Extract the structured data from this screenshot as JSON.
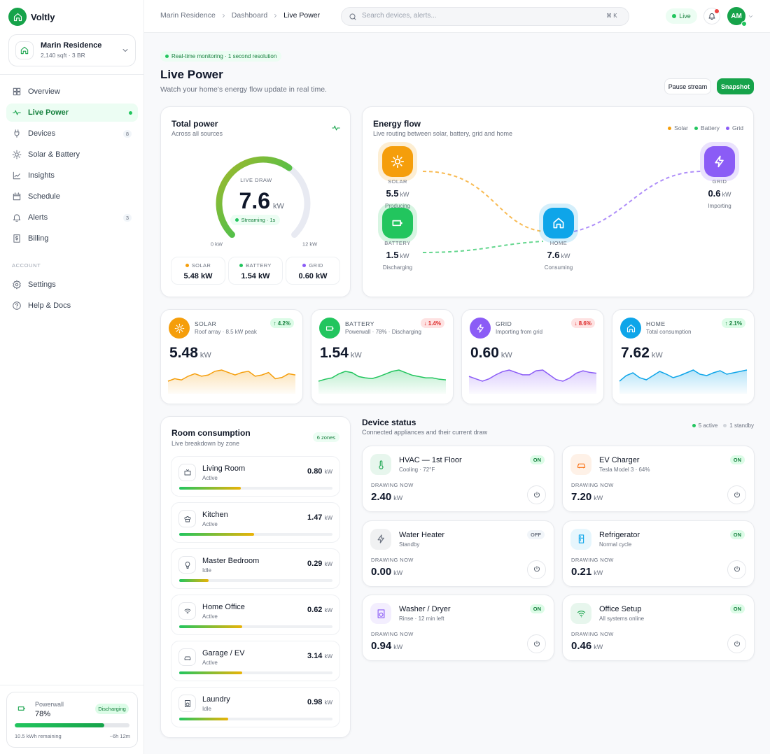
{
  "brand": "Voltly",
  "home": {
    "name": "Marin Residence",
    "details": "2,140 sqft · 3 BR"
  },
  "nav": [
    {
      "label": "Overview"
    },
    {
      "label": "Live Power",
      "active": true
    },
    {
      "label": "Devices",
      "badge": "8"
    },
    {
      "label": "Solar & Battery"
    },
    {
      "label": "Insights"
    },
    {
      "label": "Schedule"
    },
    {
      "label": "Alerts",
      "badge": "3"
    },
    {
      "label": "Billing"
    }
  ],
  "account_heading": "ACCOUNT",
  "account_nav": [
    {
      "label": "Settings"
    },
    {
      "label": "Help & Docs"
    }
  ],
  "powerwall": {
    "name": "Powerwall",
    "level_label": "78%",
    "level": 78,
    "status": "Discharging",
    "remaining": "10.5 kWh remaining",
    "time_left": "~6h 12m"
  },
  "breadcrumbs": [
    "Marin Residence",
    "Dashboard",
    "Live Power"
  ],
  "search": {
    "placeholder": "Search devices, alerts...",
    "shortcut": "⌘ K"
  },
  "live_badge": "Live",
  "avatar": "AM",
  "header": {
    "badge": "Real-time monitoring · 1 second resolution",
    "title": "Live Power",
    "subtitle": "Watch your home's energy flow update in real time.",
    "buttons": [
      "Pause stream",
      "Snapshot"
    ]
  },
  "total_power": {
    "title": "Total power",
    "subtitle": "Across all sources",
    "gauge_label": "LIVE DRAW",
    "value": 7.6,
    "unit": "kW",
    "status": "Streaming · 1s",
    "scale": [
      {
        "value": 0,
        "label": "0 kW"
      },
      {
        "value": 12,
        "label": "12 kW"
      }
    ],
    "sources": [
      {
        "name": "SOLAR",
        "value": "5.48 kW",
        "color": "#f59e0b"
      },
      {
        "name": "BATTERY",
        "value": "1.54 kW",
        "color": "#22c55e"
      },
      {
        "name": "GRID",
        "value": "0.60 kW",
        "color": "#8b5cf6"
      }
    ]
  },
  "energy_flow": {
    "title": "Energy flow",
    "subtitle": "Live routing between solar, battery, grid and home",
    "legend": [
      {
        "name": "Solar",
        "color": "#f59e0b"
      },
      {
        "name": "Battery",
        "color": "#22c55e"
      },
      {
        "name": "Grid",
        "color": "#8b5cf6"
      }
    ],
    "nodes": [
      {
        "name": "SOLAR",
        "value": "5.5",
        "unit": "kW",
        "status": "Producing",
        "color": "#f59e0b"
      },
      {
        "name": "GRID",
        "value": "0.6",
        "unit": "kW",
        "status": "Importing",
        "color": "#8b5cf6"
      },
      {
        "name": "HOME",
        "value": "7.6",
        "unit": "kW",
        "status": "Consuming",
        "color": "#0ea5e9"
      },
      {
        "name": "BATTERY",
        "value": "1.5",
        "unit": "kW",
        "status": "Discharging",
        "color": "#22c55e"
      }
    ]
  },
  "stats": [
    {
      "name": "SOLAR",
      "subtitle": "Roof array · 8.5 kW peak",
      "change": "↑ 4.2%",
      "trend": "up",
      "value": "5.48",
      "unit": "kW",
      "color": "#f59e0b",
      "spark": [
        5.42,
        5.44,
        5.43,
        5.46,
        5.48,
        5.46,
        5.47,
        5.5,
        5.51,
        5.49,
        5.47,
        5.49,
        5.5,
        5.46,
        5.47,
        5.49,
        5.44,
        5.45,
        5.48,
        5.47
      ]
    },
    {
      "name": "BATTERY",
      "subtitle": "Powerwall · 78% · Discharging",
      "change": "↓ 1.4%",
      "trend": "down",
      "value": "1.54",
      "unit": "kW",
      "color": "#22c55e",
      "spark": [
        1.45,
        1.48,
        1.5,
        1.56,
        1.6,
        1.58,
        1.52,
        1.5,
        1.49,
        1.52,
        1.56,
        1.6,
        1.62,
        1.58,
        1.54,
        1.52,
        1.5,
        1.5,
        1.48,
        1.47
      ]
    },
    {
      "name": "GRID",
      "subtitle": "Importing from grid",
      "change": "↓ 8.6%",
      "trend": "down",
      "value": "0.60",
      "unit": "kW",
      "color": "#8b5cf6",
      "spark": [
        0.58,
        0.55,
        0.52,
        0.55,
        0.6,
        0.64,
        0.66,
        0.63,
        0.6,
        0.6,
        0.65,
        0.66,
        0.6,
        0.54,
        0.52,
        0.56,
        0.62,
        0.65,
        0.63,
        0.62
      ]
    },
    {
      "name": "HOME",
      "subtitle": "Total consumption",
      "change": "↑ 2.1%",
      "trend": "up",
      "value": "7.62",
      "unit": "kW",
      "color": "#0ea5e9",
      "spark": [
        7.5,
        7.58,
        7.62,
        7.55,
        7.52,
        7.58,
        7.64,
        7.6,
        7.55,
        7.58,
        7.62,
        7.66,
        7.6,
        7.58,
        7.62,
        7.65,
        7.6,
        7.62,
        7.64,
        7.66
      ]
    }
  ],
  "rooms": {
    "title": "Room consumption",
    "subtitle": "Live breakdown by zone",
    "badge": "6 zones",
    "items": [
      {
        "name": "Living Room",
        "status": "Active",
        "value": "0.80",
        "unit": "kW",
        "level": 40
      },
      {
        "name": "Kitchen",
        "status": "Active",
        "value": "1.47",
        "unit": "kW",
        "level": 49
      },
      {
        "name": "Master Bedroom",
        "status": "Idle",
        "value": "0.29",
        "unit": "kW",
        "level": 19
      },
      {
        "name": "Home Office",
        "status": "Active",
        "value": "0.62",
        "unit": "kW",
        "level": 41
      },
      {
        "name": "Garage / EV",
        "status": "Active",
        "value": "3.14",
        "unit": "kW",
        "level": 41
      },
      {
        "name": "Laundry",
        "status": "Idle",
        "value": "0.98",
        "unit": "kW",
        "level": 32
      }
    ]
  },
  "devices": {
    "title": "Device status",
    "subtitle": "Connected appliances and their current draw",
    "summary": [
      "5 active",
      "1 standby"
    ],
    "drawing_label": "DRAWING NOW",
    "items": [
      {
        "name": "HVAC — 1st Floor",
        "detail": "Cooling · 72°F",
        "state": "ON",
        "value": "2.40",
        "unit": "kW",
        "color": "#16a34a"
      },
      {
        "name": "EV Charger",
        "detail": "Tesla Model 3 · 64%",
        "state": "ON",
        "value": "7.20",
        "unit": "kW",
        "color": "#f97316"
      },
      {
        "name": "Water Heater",
        "detail": "Standby",
        "state": "OFF",
        "value": "0.00",
        "unit": "kW",
        "color": "#6b7280"
      },
      {
        "name": "Refrigerator",
        "detail": "Normal cycle",
        "state": "ON",
        "value": "0.21",
        "unit": "kW",
        "color": "#0ea5e9"
      },
      {
        "name": "Washer / Dryer",
        "detail": "Rinse · 12 min left",
        "state": "ON",
        "value": "0.94",
        "unit": "kW",
        "color": "#8b5cf6"
      },
      {
        "name": "Office Setup",
        "detail": "All systems online",
        "state": "ON",
        "value": "0.46",
        "unit": "kW",
        "color": "#16a34a"
      }
    ]
  }
}
